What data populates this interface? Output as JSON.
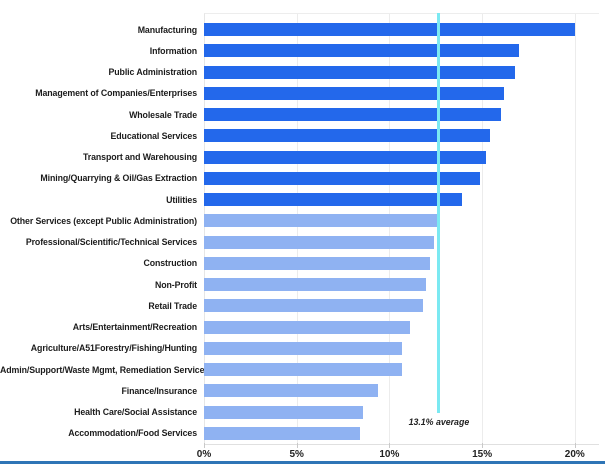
{
  "chart_data": {
    "type": "bar",
    "orientation": "horizontal",
    "title": "",
    "xlabel": "",
    "ylabel": "",
    "xlim": [
      0,
      21.2
    ],
    "grid": "vertical gridlines at 5% intervals",
    "legend": "none",
    "unit": "%",
    "categories": [
      "Manufacturing",
      "Information",
      "Public Administration",
      "Management of Companies/Enterprises",
      "Wholesale Trade",
      "Educational Services",
      "Transport and Warehousing",
      "Mining/Quarrying & Oil/Gas Extraction",
      "Utilities",
      "Other Services (except Public Administration)",
      "Professional/Scientific/Technical Services",
      "Construction",
      "Non-Profit",
      "Retail Trade",
      "Arts/Entertainment/Recreation",
      "Agriculture/A51Forestry/Fishing/Hunting",
      "Admin/Support/Waste Mgmt, Remediation Services",
      "Finance/Insurance",
      "Health Care/Social Assistance",
      "Accommodation/Food Services"
    ],
    "values": [
      20.0,
      17.0,
      16.8,
      16.2,
      16.0,
      15.4,
      15.2,
      14.9,
      13.9,
      12.6,
      12.4,
      12.2,
      12.0,
      11.8,
      11.1,
      10.7,
      10.7,
      9.4,
      8.6,
      8.4
    ],
    "x_ticks": [
      0,
      5,
      10,
      15,
      20
    ],
    "x_tick_labels": [
      "0%",
      "5%",
      "10%",
      "15%",
      "20%"
    ],
    "average_line": {
      "value": 13.1,
      "label": "13.1% average",
      "display_position_pct": 12.67
    },
    "colors": {
      "above_average_bar": "#2368EB",
      "below_average_bar": "#8FB2F2",
      "average_line": "#7BE9F2",
      "bottom_rule": "#2E75B6"
    }
  }
}
